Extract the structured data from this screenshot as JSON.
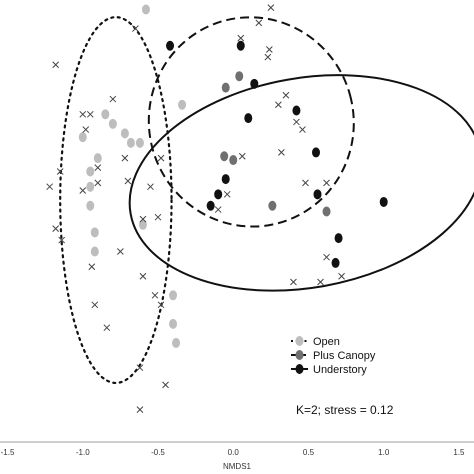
{
  "chart_data": {
    "type": "scatter",
    "title": "",
    "xlabel": "NMDS1",
    "ylabel": "",
    "xlim": [
      -1.55,
      1.6
    ],
    "ylim": [
      -1.22,
      1.1
    ],
    "x_ticks": [
      "-1.5",
      "-1.0",
      "-0.5",
      "0.0",
      "0.5",
      "1.0",
      "1.5"
    ],
    "x_tick_values": [
      -1.5,
      -1.0,
      -0.5,
      0.0,
      0.5,
      1.0,
      1.5
    ],
    "annotation": "K=2; stress = 0.12",
    "legend_position": "bottom-right",
    "series": [
      {
        "name": "Open",
        "marker": "circle",
        "color": "#bdbdbd",
        "points": [
          [
            -0.58,
            1.05
          ],
          [
            -0.85,
            0.5
          ],
          [
            -0.8,
            0.45
          ],
          [
            -0.72,
            0.4
          ],
          [
            -0.34,
            0.55
          ],
          [
            -0.68,
            0.35
          ],
          [
            -1.0,
            0.38
          ],
          [
            -0.9,
            0.27
          ],
          [
            -0.62,
            0.35
          ],
          [
            -0.95,
            0.2
          ],
          [
            -0.95,
            0.12
          ],
          [
            -0.95,
            0.02
          ],
          [
            -0.6,
            -0.08
          ],
          [
            -0.92,
            -0.12
          ],
          [
            -0.92,
            -0.22
          ],
          [
            -0.4,
            -0.45
          ],
          [
            -0.4,
            -0.6
          ],
          [
            -0.38,
            -0.7
          ]
        ]
      },
      {
        "name": "Plus Canopy",
        "marker": "circle",
        "color": "#707070",
        "points": [
          [
            0.04,
            0.7
          ],
          [
            -0.05,
            0.64
          ],
          [
            -0.06,
            0.28
          ],
          [
            0.0,
            0.26
          ],
          [
            0.26,
            0.02
          ],
          [
            0.62,
            -0.01
          ]
        ]
      },
      {
        "name": "Understory",
        "marker": "circle",
        "color": "#111111",
        "points": [
          [
            -0.42,
            0.86
          ],
          [
            0.05,
            0.86
          ],
          [
            0.14,
            0.66
          ],
          [
            0.1,
            0.48
          ],
          [
            0.42,
            0.52
          ],
          [
            0.55,
            0.3
          ],
          [
            -0.05,
            0.16
          ],
          [
            -0.1,
            0.08
          ],
          [
            -0.15,
            0.02
          ],
          [
            0.56,
            0.08
          ],
          [
            0.7,
            -0.15
          ],
          [
            0.68,
            -0.28
          ],
          [
            1.0,
            0.04
          ]
        ]
      },
      {
        "name": "species",
        "marker": "x",
        "color": "#444444",
        "points": [
          [
            0.25,
            1.06
          ],
          [
            0.17,
            0.98
          ],
          [
            0.05,
            0.9
          ],
          [
            -0.65,
            0.95
          ],
          [
            -1.18,
            0.76
          ],
          [
            -1.0,
            0.5
          ],
          [
            -0.95,
            0.5
          ],
          [
            -0.8,
            0.58
          ],
          [
            -0.98,
            0.42
          ],
          [
            -0.72,
            0.27
          ],
          [
            -0.9,
            0.22
          ],
          [
            -1.0,
            0.1
          ],
          [
            -0.9,
            0.14
          ],
          [
            -0.55,
            0.12
          ],
          [
            -0.48,
            0.27
          ],
          [
            -1.15,
            0.2
          ],
          [
            -1.22,
            0.12
          ],
          [
            -0.7,
            0.15
          ],
          [
            -0.6,
            -0.05
          ],
          [
            -0.5,
            -0.04
          ],
          [
            -1.18,
            -0.1
          ],
          [
            -1.14,
            -0.16
          ],
          [
            -0.94,
            -0.3
          ],
          [
            -0.75,
            -0.22
          ],
          [
            -0.6,
            -0.35
          ],
          [
            -0.52,
            -0.45
          ],
          [
            -0.48,
            -0.5
          ],
          [
            -0.84,
            -0.62
          ],
          [
            -0.92,
            -0.5
          ],
          [
            -0.62,
            -0.83
          ],
          [
            -0.45,
            -0.92
          ],
          [
            -0.62,
            -1.05
          ],
          [
            0.24,
            0.84
          ],
          [
            0.23,
            0.8
          ],
          [
            0.35,
            0.6
          ],
          [
            0.3,
            0.55
          ],
          [
            0.32,
            0.3
          ],
          [
            0.42,
            0.46
          ],
          [
            0.46,
            0.42
          ],
          [
            0.62,
            0.14
          ],
          [
            0.48,
            0.14
          ],
          [
            0.06,
            0.28
          ],
          [
            -0.04,
            0.08
          ],
          [
            -0.1,
            0.0
          ],
          [
            0.62,
            -0.25
          ],
          [
            0.72,
            -0.35
          ],
          [
            0.58,
            -0.38
          ],
          [
            0.4,
            -0.38
          ]
        ]
      }
    ],
    "ellipses": [
      {
        "group": "Open",
        "line": "dotted",
        "center": [
          -0.78,
          0.05
        ],
        "rx": 0.37,
        "ry": 0.96,
        "rotation_deg": 0
      },
      {
        "group": "Plus Canopy",
        "line": "dashed",
        "center": [
          0.12,
          0.46
        ],
        "rx": 0.68,
        "ry": 0.55,
        "rotation_deg": -15
      },
      {
        "group": "Understory",
        "line": "solid",
        "center": [
          0.48,
          0.14
        ],
        "rx": 1.18,
        "ry": 0.55,
        "rotation_deg": -10
      }
    ]
  }
}
